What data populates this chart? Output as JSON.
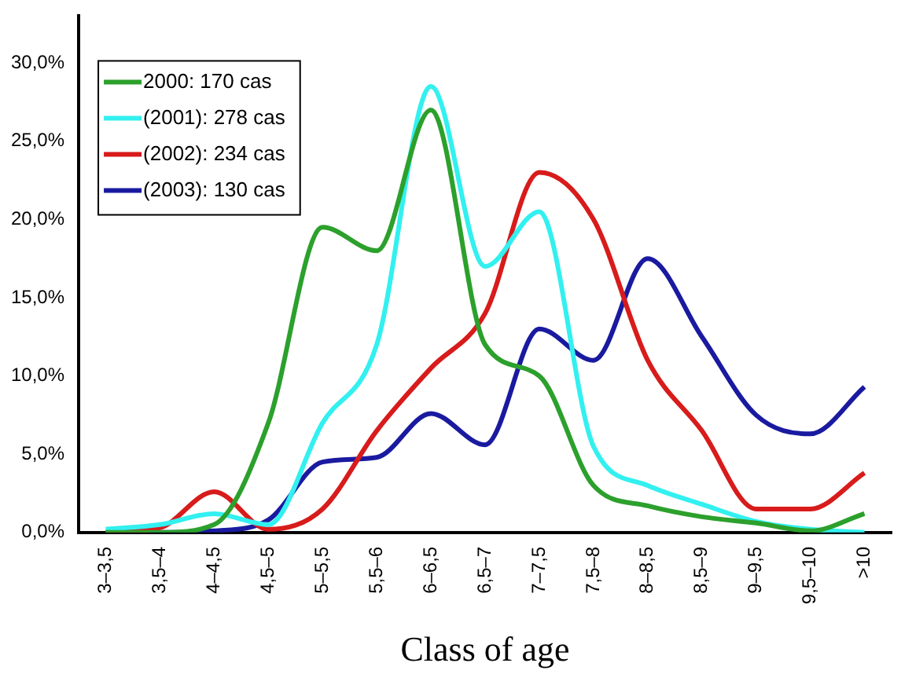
{
  "chart_data": {
    "type": "line",
    "xlabel": "Class of age",
    "categories": [
      "3–3,5",
      "3,5–4",
      "4–4,5",
      "4,5–5",
      "5–5,5",
      "5,5–6",
      "6–6,5",
      "6,5–7",
      "7–7,5",
      "7,5–8",
      "8–8,5",
      "8,5–9",
      "9–9,5",
      "9,5–10",
      ">10"
    ],
    "series": [
      {
        "name": "2000: 170 cas",
        "color": "#2ca02c",
        "values": [
          0,
          0,
          0.5,
          7,
          19.5,
          18,
          27,
          12,
          10,
          3,
          1.7,
          1,
          0.6,
          0.1,
          1.2
        ]
      },
      {
        "name": "(2001): 278 cas",
        "color": "#33f0f0",
        "values": [
          0.2,
          0.5,
          1.2,
          0.5,
          7,
          12,
          28.5,
          17,
          20.5,
          5.5,
          3,
          1.8,
          0.7,
          0.2,
          0
        ]
      },
      {
        "name": "(2002): 234 cas",
        "color": "#d81b1b",
        "values": [
          0,
          0.3,
          2.6,
          0.2,
          1.5,
          6.5,
          10.5,
          14,
          23,
          20,
          11,
          6.5,
          1.5,
          1.5,
          3.8
        ]
      },
      {
        "name": "(2003): 130 cas",
        "color": "#1a1aa0",
        "values": [
          0,
          0,
          0.1,
          0.8,
          4.5,
          4.8,
          7.6,
          5.6,
          13,
          11,
          17.5,
          12.5,
          7.5,
          6.3,
          9.3
        ]
      }
    ],
    "ylim": [
      0,
      33
    ],
    "yticks": [
      {
        "value": 0,
        "label": "0,0%"
      },
      {
        "value": 5,
        "label": "5,0%"
      },
      {
        "value": 10,
        "label": "10,0%"
      },
      {
        "value": 15,
        "label": "15,0%"
      },
      {
        "value": 20,
        "label": "20,0%"
      },
      {
        "value": 25,
        "label": "25,0%"
      },
      {
        "value": 30,
        "label": "30,0%"
      }
    ],
    "grid": false,
    "legend": "top left",
    "marker": "none",
    "line_style": "solid"
  }
}
